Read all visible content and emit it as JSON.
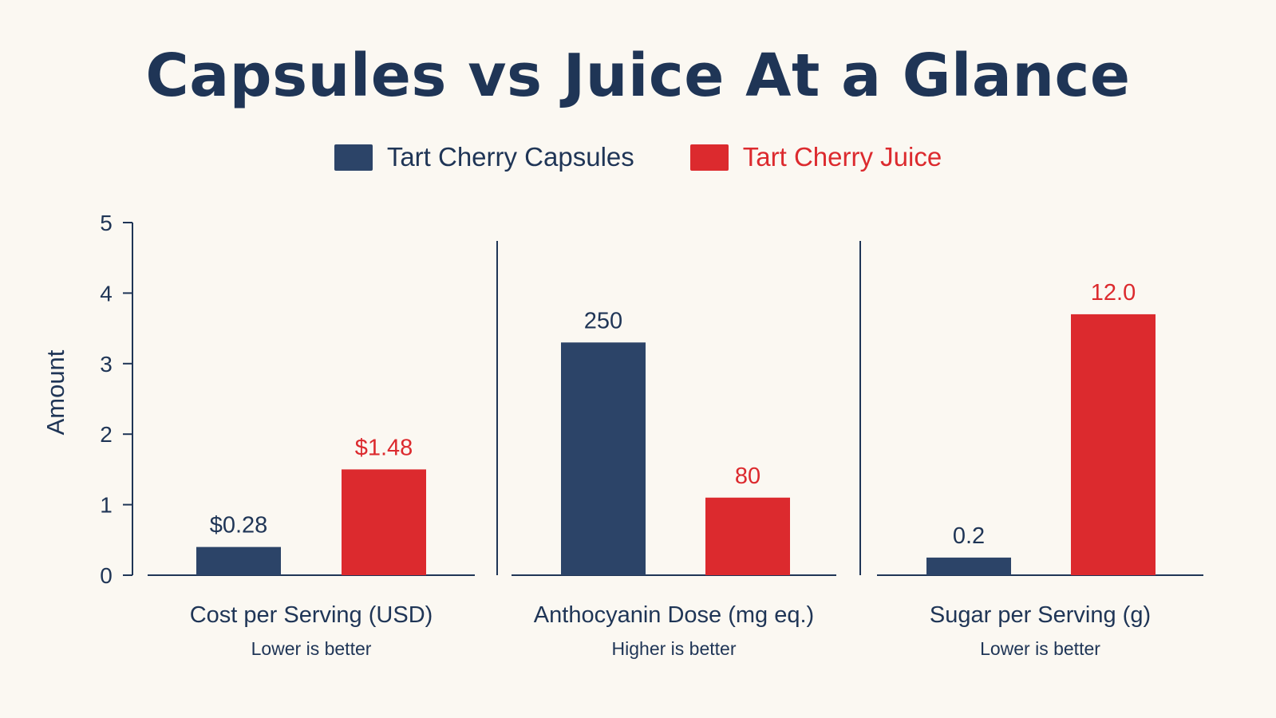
{
  "chart_data": {
    "type": "bar",
    "title": "Capsules vs Juice At a Glance",
    "ylabel": "Amount",
    "ylim": [
      0,
      5
    ],
    "yticks": [
      "0",
      "1",
      "2",
      "3",
      "4",
      "5"
    ],
    "legend_position": "top-center",
    "grid": false,
    "series": [
      {
        "name": "Tart Cherry Capsules",
        "color": "#2c4468"
      },
      {
        "name": "Tart Cherry Juice",
        "color": "#dc2a2e"
      }
    ],
    "panels": [
      {
        "label": "Cost per Serving (USD)",
        "note": "Lower is better",
        "bars": [
          {
            "series": "Tart Cherry Capsules",
            "value": 0.4,
            "label": "$0.28"
          },
          {
            "series": "Tart Cherry Juice",
            "value": 1.5,
            "label": "$1.48"
          }
        ]
      },
      {
        "label": "Anthocyanin Dose (mg eq.)",
        "note": "Higher is better",
        "bars": [
          {
            "series": "Tart Cherry Capsules",
            "value": 3.3,
            "label": "250"
          },
          {
            "series": "Tart Cherry Juice",
            "value": 1.1,
            "label": "80"
          }
        ]
      },
      {
        "label": "Sugar per Serving (g)",
        "note": "Lower is better",
        "bars": [
          {
            "series": "Tart Cherry Capsules",
            "value": 0.25,
            "label": "0.2"
          },
          {
            "series": "Tart Cherry Juice",
            "value": 3.7,
            "label": "12.0"
          }
        ]
      }
    ]
  }
}
